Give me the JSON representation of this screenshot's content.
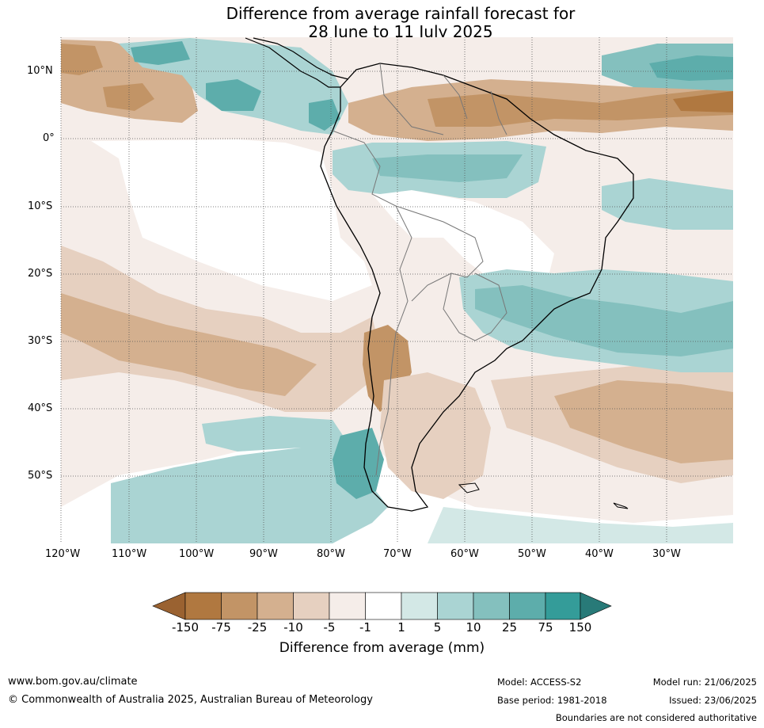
{
  "title_line1": "Difference from average rainfall forecast for",
  "title_line2": "28 June to 11 July 2025",
  "lat_ticks": [
    "10°N",
    "0°",
    "10°S",
    "20°S",
    "30°S",
    "40°S",
    "50°S"
  ],
  "lon_ticks": [
    "120°W",
    "110°W",
    "100°W",
    "90°W",
    "80°W",
    "70°W",
    "60°W",
    "50°W",
    "40°W",
    "30°W"
  ],
  "legend": {
    "labels": [
      "-150",
      "-75",
      "-25",
      "-10",
      "-5",
      "-1",
      "1",
      "5",
      "10",
      "25",
      "75",
      "150"
    ],
    "colors": [
      "#9a6231",
      "#b07840",
      "#c29466",
      "#d4b08f",
      "#e6d0c0",
      "#f5ede9",
      "#ffffff",
      "#d3e8e6",
      "#aad4d3",
      "#84c0be",
      "#5dadab",
      "#349c99",
      "#287a78"
    ],
    "title": "Difference from average (mm)"
  },
  "footer": {
    "url": "www.bom.gov.au/climate",
    "copyright": "© Commonwealth of Australia 2025, Australian Bureau of Meteorology",
    "model": "Model: ACCESS-S2",
    "base_period": "Base period: 1981-2018",
    "model_run": "Model run: 21/06/2025",
    "issued": "Issued: 23/06/2025",
    "boundaries": "Boundaries are not considered authoritative"
  }
}
